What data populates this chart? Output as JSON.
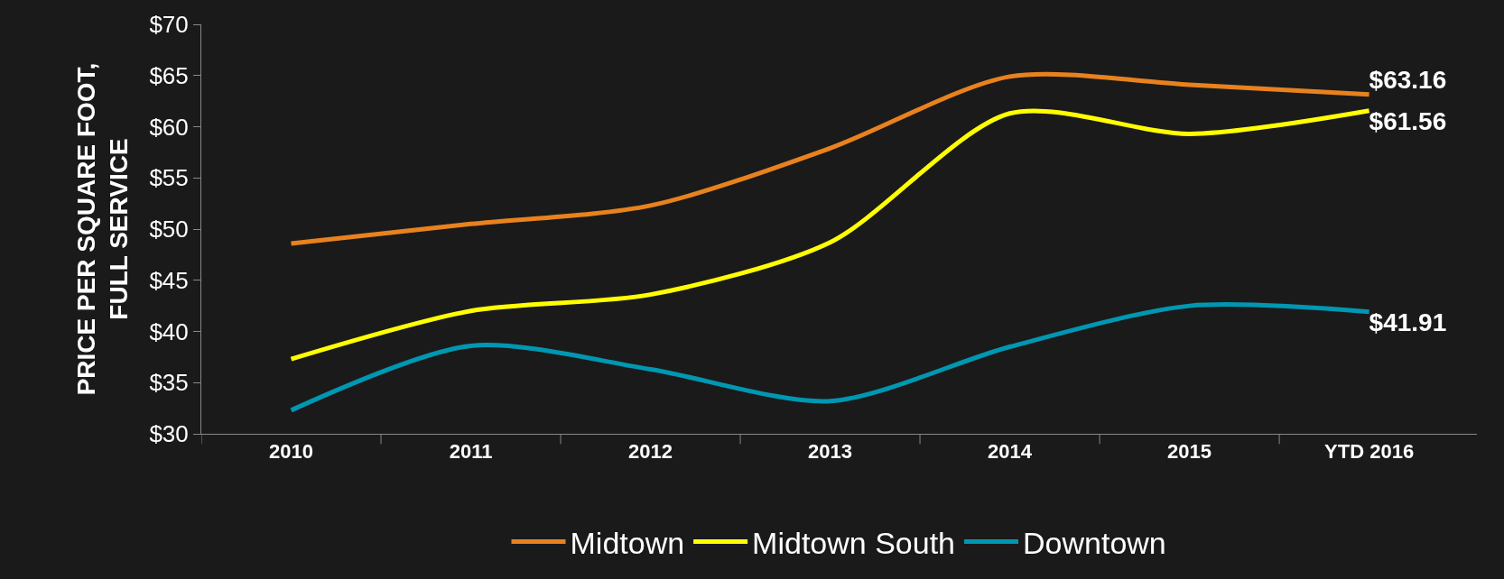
{
  "chart_data": {
    "type": "line",
    "ylabel": "PRICE PER SQUARE FOOT,\nFULL SERVICE",
    "categories": [
      "2010",
      "2011",
      "2012",
      "2013",
      "2014",
      "2015",
      "YTD 2016"
    ],
    "series": [
      {
        "name": "Midtown",
        "color": "#e8821e",
        "values": [
          48.6,
          50.5,
          52.3,
          57.9,
          64.9,
          64.1,
          63.16
        ],
        "value_labels": [
          null,
          null,
          null,
          null,
          null,
          null,
          "$63.16"
        ]
      },
      {
        "name": "Midtown South",
        "color": "#ffff00",
        "values": [
          37.3,
          42.0,
          43.6,
          48.7,
          61.3,
          59.3,
          61.56
        ],
        "value_labels": [
          null,
          null,
          null,
          null,
          null,
          null,
          "$61.56"
        ]
      },
      {
        "name": "Downtown",
        "color": "#0097b2",
        "values": [
          32.3,
          38.6,
          36.3,
          33.2,
          38.5,
          42.5,
          41.91
        ],
        "value_labels": [
          null,
          null,
          null,
          null,
          null,
          null,
          "$41.91"
        ]
      }
    ],
    "ylim": [
      30,
      70
    ],
    "yticks": [
      {
        "value": 30,
        "label": "$30"
      },
      {
        "value": 35,
        "label": "$35"
      },
      {
        "value": 40,
        "label": "$40"
      },
      {
        "value": 45,
        "label": "$45"
      },
      {
        "value": 50,
        "label": "$50"
      },
      {
        "value": 55,
        "label": "$55"
      },
      {
        "value": 60,
        "label": "$60"
      },
      {
        "value": 65,
        "label": "$65"
      },
      {
        "value": 70,
        "label": "$70"
      }
    ],
    "grid": false,
    "legend": "bottom",
    "marker": "none",
    "line_style": "solid"
  }
}
